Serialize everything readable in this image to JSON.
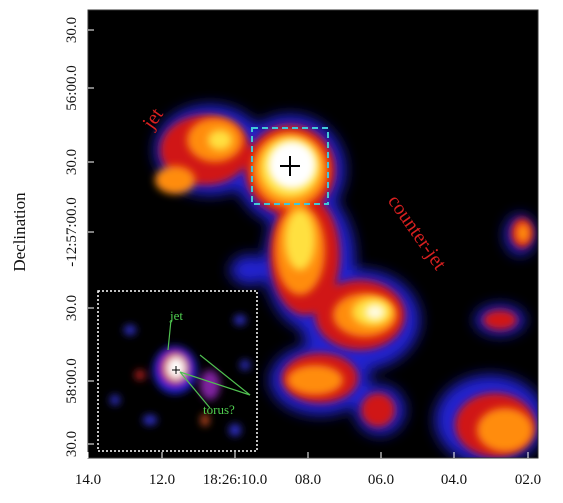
{
  "figure": {
    "y_label": "Declination",
    "x_ticks": [
      "14.0",
      "12.0",
      "18:26:10.0",
      "08.0",
      "06.0",
      "04.0",
      "02.0"
    ],
    "y_ticks": [
      "30.0",
      "58:00.0",
      "30.0",
      "-12:57:00.0",
      "30.0",
      "56:00.0",
      "30.0"
    ],
    "annotations": {
      "jet": "jet",
      "counter_jet": "counter-jet"
    },
    "inset": {
      "jet": "jet",
      "torus": "torus?"
    }
  }
}
